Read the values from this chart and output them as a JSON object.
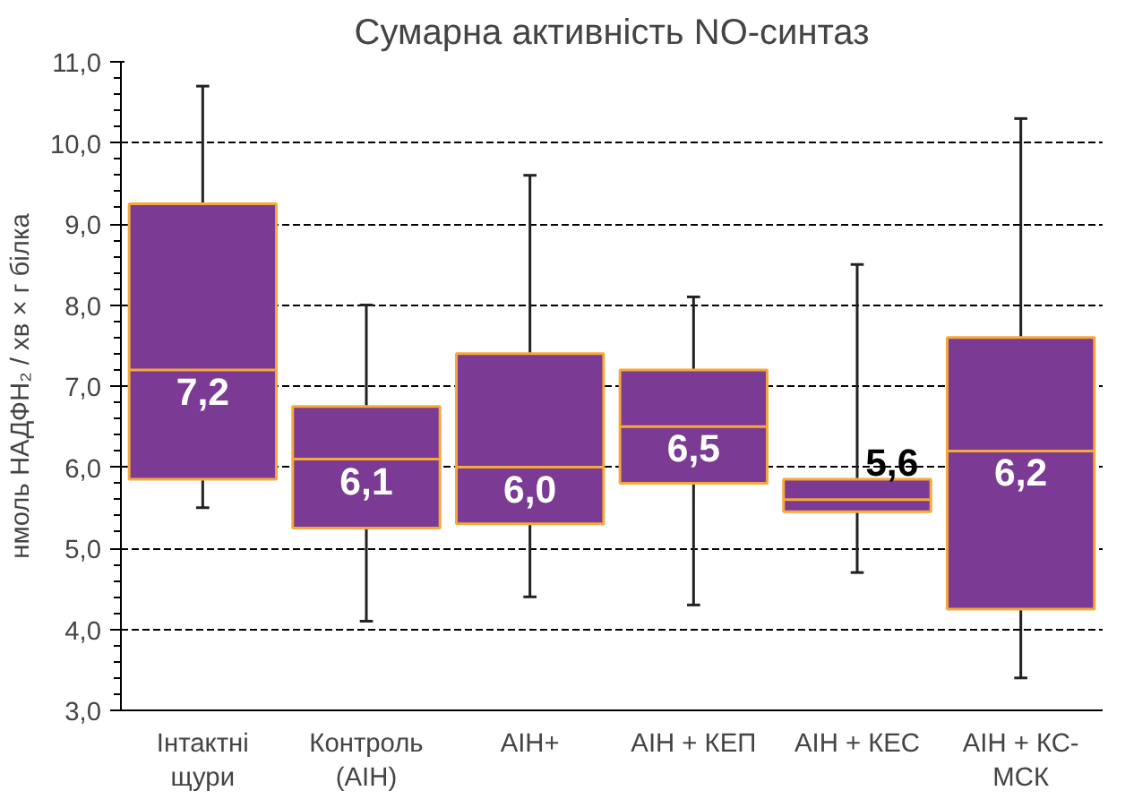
{
  "chart_data": {
    "type": "box",
    "title": "Сумарна активність NO-синтаз",
    "ylabel": "нмоль НАДФН₂ / хв × г білка",
    "categories": [
      "Інтактні\nщури",
      "Контроль\n(АІН)",
      "АІН+",
      "АІН + КЕП",
      "АІН + КЕС",
      "АІН + КС-\nМСК"
    ],
    "boxes": [
      {
        "low": 5.5,
        "q1": 5.85,
        "median": 7.2,
        "q3": 9.25,
        "high": 10.7
      },
      {
        "low": 4.1,
        "q1": 5.25,
        "median": 6.1,
        "q3": 6.75,
        "high": 8.0
      },
      {
        "low": 4.4,
        "q1": 5.3,
        "median": 6.0,
        "q3": 7.4,
        "high": 9.6
      },
      {
        "low": 4.3,
        "q1": 5.8,
        "median": 6.5,
        "q3": 7.2,
        "high": 8.1
      },
      {
        "low": 4.7,
        "q1": 5.45,
        "median": 5.6,
        "q3": 5.85,
        "high": 8.5
      },
      {
        "low": 3.4,
        "q1": 4.25,
        "median": 6.2,
        "q3": 7.6,
        "high": 10.3
      }
    ],
    "value_labels": [
      "7,2",
      "6,1",
      "6,0",
      "6,5",
      "5,6",
      "6,2"
    ],
    "color": "#7b3a93",
    "ylim": [
      3,
      11
    ],
    "yticks": [
      {
        "value": 3,
        "label": "3,0"
      },
      {
        "value": 4,
        "label": "4,0"
      },
      {
        "value": 5,
        "label": "5,0"
      },
      {
        "value": 6,
        "label": "6,0"
      },
      {
        "value": 7,
        "label": "7,0"
      },
      {
        "value": 8,
        "label": "8,0"
      },
      {
        "value": 9,
        "label": "9,0"
      },
      {
        "value": 10,
        "label": "10,0"
      },
      {
        "value": 11,
        "label": "11,0"
      }
    ],
    "grid": "y"
  }
}
